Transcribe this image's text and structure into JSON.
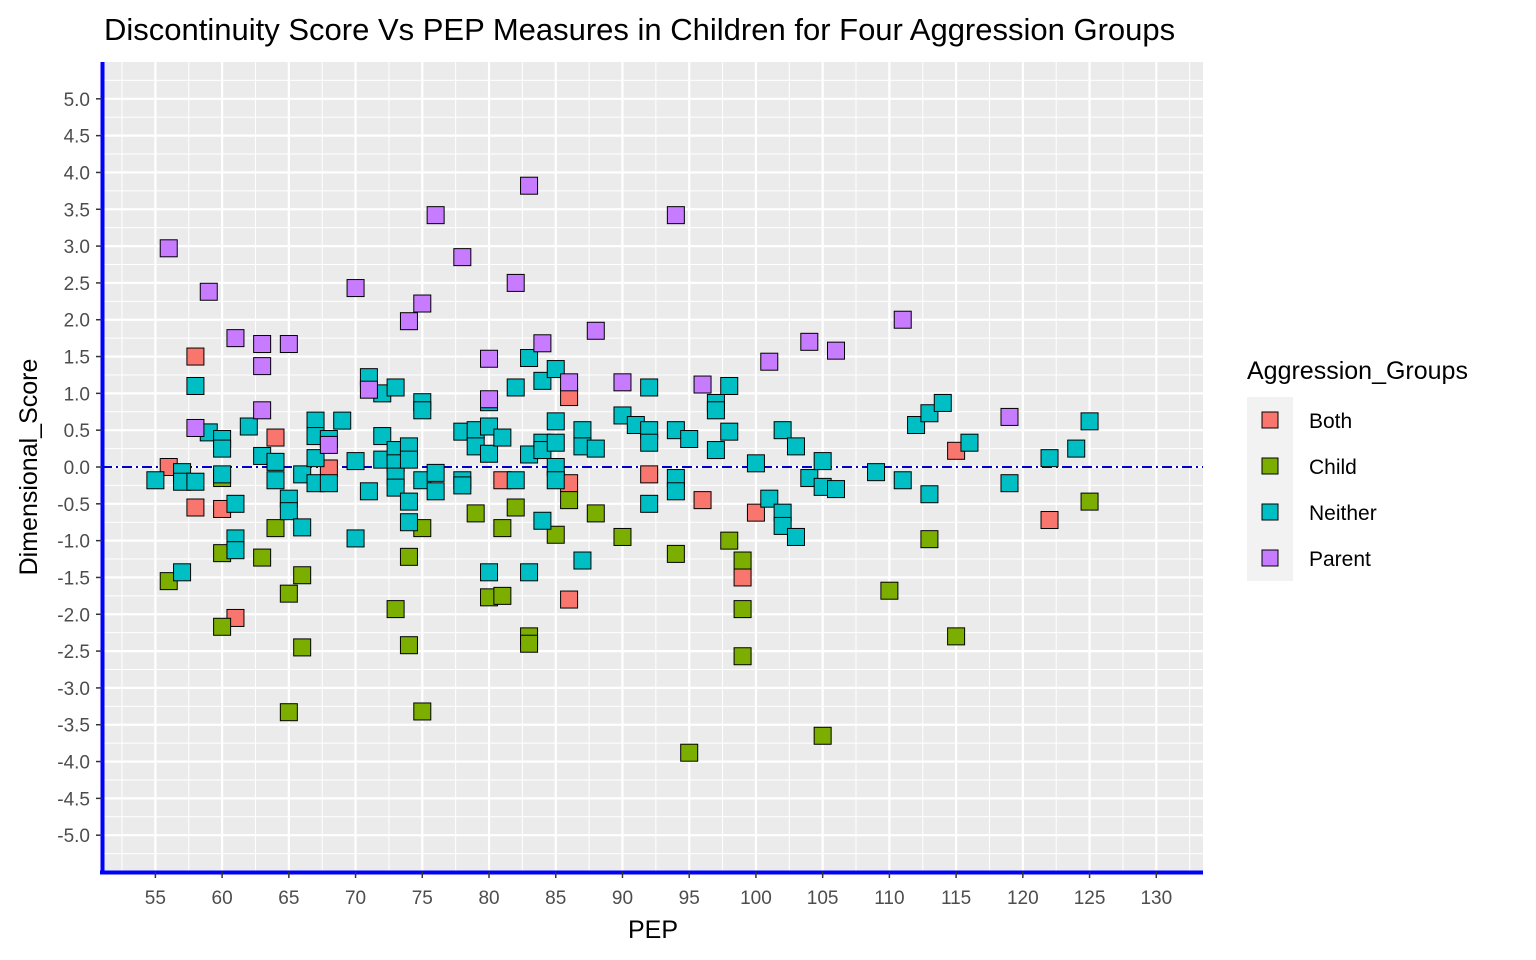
{
  "chart_data": {
    "type": "scatter",
    "title": "Discontinuity Score Vs PEP Measures in Children for Four Aggression Groups",
    "xlabel": "PEP",
    "ylabel": "Dimensional_Score",
    "xlim": [
      51,
      133.5
    ],
    "ylim": [
      -5.5,
      5.5
    ],
    "x_ticks": [
      55,
      60,
      65,
      70,
      75,
      80,
      85,
      90,
      95,
      100,
      105,
      110,
      115,
      120,
      125,
      130
    ],
    "y_ticks": [
      5.0,
      4.5,
      4.0,
      3.5,
      3.0,
      2.5,
      2.0,
      1.5,
      1.0,
      0.5,
      0.0,
      -0.5,
      -1.0,
      -1.5,
      -2.0,
      -2.5,
      -3.0,
      -3.5,
      -4.0,
      -4.5,
      -5.0
    ],
    "x_tick_labels": [
      "55",
      "60",
      "65",
      "70",
      "75",
      "80",
      "85",
      "90",
      "95",
      "100",
      "105",
      "110",
      "115",
      "120",
      "125",
      "130"
    ],
    "y_tick_labels": [
      "5.0",
      "4.5",
      "4.0",
      "3.5",
      "3.0",
      "2.5",
      "2.0",
      "1.5",
      "1.0",
      "0.5",
      "0.0",
      "-0.5",
      "-1.0",
      "-1.5",
      "-2.0",
      "-2.5",
      "-3.0",
      "-3.5",
      "-4.0",
      "-4.5",
      "-5.0"
    ],
    "grid": true,
    "reference_line": {
      "y": 0,
      "style": "dash-dot",
      "color": "#0000CC"
    },
    "axis_color": "#0000FF",
    "panel_background": "#EBEBEB",
    "legend": {
      "title": "Aggression_Groups",
      "position": "right",
      "entries": [
        "Both",
        "Child",
        "Neither",
        "Parent"
      ]
    },
    "series": [
      {
        "name": "Both",
        "color": "#F8766D",
        "points": [
          [
            56,
            0.0
          ],
          [
            58,
            1.5
          ],
          [
            58,
            -0.55
          ],
          [
            60,
            -0.57
          ],
          [
            61,
            -2.05
          ],
          [
            64,
            0.4
          ],
          [
            68,
            -0.02
          ],
          [
            81,
            -0.18
          ],
          [
            86,
            0.95
          ],
          [
            86,
            -0.22
          ],
          [
            86,
            -1.8
          ],
          [
            92,
            -0.1
          ],
          [
            96,
            -0.45
          ],
          [
            99,
            -1.5
          ],
          [
            100,
            -0.62
          ],
          [
            115,
            0.22
          ],
          [
            122,
            -0.72
          ]
        ]
      },
      {
        "name": "Child",
        "color": "#7CAE00",
        "points": [
          [
            56,
            -1.55
          ],
          [
            60,
            -0.15
          ],
          [
            60,
            -1.17
          ],
          [
            60,
            -2.17
          ],
          [
            63,
            -1.23
          ],
          [
            64,
            -0.83
          ],
          [
            65,
            -1.72
          ],
          [
            65,
            -3.33
          ],
          [
            66,
            -1.47
          ],
          [
            66,
            -2.45
          ],
          [
            73,
            -1.93
          ],
          [
            74,
            -1.22
          ],
          [
            74,
            -2.42
          ],
          [
            75,
            -0.83
          ],
          [
            75,
            -3.32
          ],
          [
            79,
            -0.63
          ],
          [
            80,
            -1.77
          ],
          [
            81,
            -0.83
          ],
          [
            81,
            -1.75
          ],
          [
            82,
            -0.55
          ],
          [
            83,
            -2.3
          ],
          [
            83,
            -2.4
          ],
          [
            85,
            -0.92
          ],
          [
            86,
            -0.45
          ],
          [
            88,
            -0.63
          ],
          [
            90,
            -0.95
          ],
          [
            94,
            -1.18
          ],
          [
            95,
            -3.88
          ],
          [
            98,
            -1.0
          ],
          [
            99,
            -1.27
          ],
          [
            99,
            -1.93
          ],
          [
            99,
            -2.57
          ],
          [
            105,
            -3.65
          ],
          [
            110,
            -1.68
          ],
          [
            113,
            -0.98
          ],
          [
            115,
            -2.3
          ],
          [
            125,
            -0.47
          ]
        ]
      },
      {
        "name": "Neither",
        "color": "#00BFC4",
        "points": [
          [
            55,
            -0.18
          ],
          [
            57,
            -0.07
          ],
          [
            57,
            -0.2
          ],
          [
            57,
            -1.43
          ],
          [
            58,
            1.1
          ],
          [
            58,
            -0.2
          ],
          [
            59,
            0.47
          ],
          [
            60,
            0.38
          ],
          [
            60,
            0.25
          ],
          [
            60,
            -0.1
          ],
          [
            61,
            -0.5
          ],
          [
            61,
            -0.97
          ],
          [
            61,
            -1.13
          ],
          [
            62,
            0.55
          ],
          [
            63,
            0.15
          ],
          [
            64,
            0.07
          ],
          [
            64,
            -0.18
          ],
          [
            65,
            -0.43
          ],
          [
            65,
            -0.6
          ],
          [
            66,
            -0.1
          ],
          [
            66,
            -0.82
          ],
          [
            67,
            0.63
          ],
          [
            67,
            0.42
          ],
          [
            67,
            0.12
          ],
          [
            67,
            -0.22
          ],
          [
            68,
            0.38
          ],
          [
            68,
            -0.22
          ],
          [
            69,
            0.63
          ],
          [
            70,
            0.08
          ],
          [
            70,
            -0.97
          ],
          [
            71,
            1.22
          ],
          [
            71,
            -0.33
          ],
          [
            72,
            1.0
          ],
          [
            72,
            0.42
          ],
          [
            72,
            0.1
          ],
          [
            73,
            1.08
          ],
          [
            73,
            0.23
          ],
          [
            73,
            0.05
          ],
          [
            73,
            -0.13
          ],
          [
            73,
            -0.28
          ],
          [
            74,
            0.28
          ],
          [
            74,
            0.1
          ],
          [
            74,
            -0.47
          ],
          [
            74,
            -0.75
          ],
          [
            75,
            0.88
          ],
          [
            75,
            0.77
          ],
          [
            75,
            -0.18
          ],
          [
            76,
            -0.08
          ],
          [
            76,
            -0.33
          ],
          [
            78,
            0.48
          ],
          [
            78,
            -0.18
          ],
          [
            78,
            -0.25
          ],
          [
            79,
            0.5
          ],
          [
            79,
            0.28
          ],
          [
            80,
            0.88
          ],
          [
            80,
            0.55
          ],
          [
            80,
            0.18
          ],
          [
            80,
            -1.43
          ],
          [
            81,
            0.4
          ],
          [
            82,
            1.08
          ],
          [
            82,
            -0.18
          ],
          [
            83,
            1.48
          ],
          [
            83,
            0.17
          ],
          [
            83,
            -1.43
          ],
          [
            84,
            1.17
          ],
          [
            84,
            0.33
          ],
          [
            84,
            0.23
          ],
          [
            84,
            -0.73
          ],
          [
            85,
            1.33
          ],
          [
            85,
            0.62
          ],
          [
            85,
            0.33
          ],
          [
            85,
            0.0
          ],
          [
            85,
            -0.18
          ],
          [
            87,
            0.5
          ],
          [
            87,
            0.28
          ],
          [
            87,
            -1.27
          ],
          [
            88,
            0.25
          ],
          [
            90,
            0.7
          ],
          [
            91,
            0.57
          ],
          [
            92,
            1.08
          ],
          [
            92,
            0.5
          ],
          [
            92,
            0.33
          ],
          [
            92,
            -0.5
          ],
          [
            94,
            0.5
          ],
          [
            94,
            -0.15
          ],
          [
            94,
            -0.33
          ],
          [
            95,
            0.38
          ],
          [
            97,
            0.87
          ],
          [
            97,
            0.77
          ],
          [
            97,
            0.23
          ],
          [
            98,
            1.1
          ],
          [
            98,
            0.48
          ],
          [
            100,
            0.05
          ],
          [
            101,
            -0.43
          ],
          [
            102,
            0.5
          ],
          [
            102,
            -0.62
          ],
          [
            102,
            -0.8
          ],
          [
            103,
            0.28
          ],
          [
            103,
            -0.95
          ],
          [
            104,
            -0.15
          ],
          [
            105,
            0.08
          ],
          [
            105,
            -0.27
          ],
          [
            106,
            -0.3
          ],
          [
            109,
            -0.07
          ],
          [
            111,
            -0.18
          ],
          [
            112,
            0.57
          ],
          [
            113,
            0.73
          ],
          [
            113,
            -0.37
          ],
          [
            114,
            0.87
          ],
          [
            116,
            0.33
          ],
          [
            119,
            -0.22
          ],
          [
            122,
            0.12
          ],
          [
            124,
            0.25
          ],
          [
            125,
            0.62
          ]
        ]
      },
      {
        "name": "Parent",
        "color": "#C77CFF",
        "points": [
          [
            56,
            2.97
          ],
          [
            58,
            0.53
          ],
          [
            59,
            2.38
          ],
          [
            61,
            1.75
          ],
          [
            63,
            1.67
          ],
          [
            63,
            1.37
          ],
          [
            63,
            0.77
          ],
          [
            65,
            1.67
          ],
          [
            68,
            0.3
          ],
          [
            70,
            2.43
          ],
          [
            71,
            1.05
          ],
          [
            74,
            1.98
          ],
          [
            75,
            2.22
          ],
          [
            76,
            3.42
          ],
          [
            78,
            2.85
          ],
          [
            80,
            1.47
          ],
          [
            80,
            0.92
          ],
          [
            82,
            2.5
          ],
          [
            83,
            3.82
          ],
          [
            84,
            1.68
          ],
          [
            86,
            1.15
          ],
          [
            88,
            1.85
          ],
          [
            90,
            1.15
          ],
          [
            94,
            3.42
          ],
          [
            96,
            1.12
          ],
          [
            101,
            1.43
          ],
          [
            104,
            1.7
          ],
          [
            106,
            1.58
          ],
          [
            111,
            2.0
          ],
          [
            119,
            0.68
          ]
        ]
      }
    ]
  }
}
